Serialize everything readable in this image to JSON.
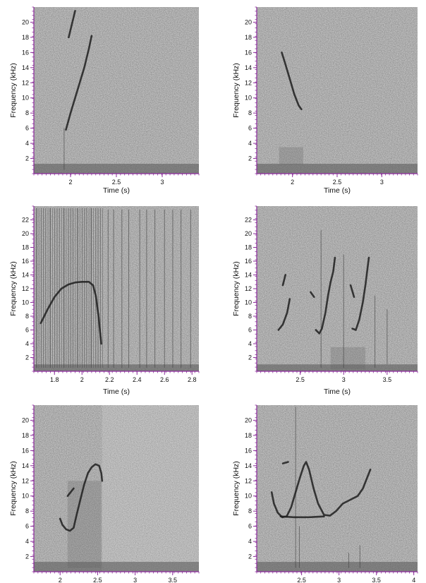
{
  "chart_data": [
    {
      "type": "spectrogram",
      "xlabel": "Time (s)",
      "ylabel": "Frequency (kHz)",
      "xlim": [
        1.6,
        3.4
      ],
      "ylim": [
        0,
        22
      ],
      "xticks": [
        2,
        2.5,
        3
      ],
      "xtick_labels": [
        "2",
        "2.5",
        "3"
      ],
      "yticks": [
        2,
        4,
        6,
        8,
        10,
        12,
        14,
        16,
        18,
        20
      ],
      "ytick_labels": [
        "2",
        "4",
        "6",
        "8",
        "10",
        "12",
        "14",
        "16",
        "18",
        "20"
      ],
      "contours": [
        {
          "points": [
            [
              1.95,
              5.8
            ],
            [
              2.0,
              8.0
            ],
            [
              2.05,
              10.0
            ],
            [
              2.1,
              12.0
            ],
            [
              2.15,
              14.0
            ],
            [
              2.2,
              16.5
            ],
            [
              2.23,
              18.2
            ]
          ]
        },
        {
          "points": [
            [
              1.98,
              18.0
            ],
            [
              2.02,
              20.0
            ],
            [
              2.05,
              21.5
            ]
          ]
        }
      ],
      "vlines": [
        {
          "x": 1.93,
          "from": 0.5,
          "to": 6.0
        }
      ],
      "base_band": [
        0,
        1.3
      ]
    },
    {
      "type": "spectrogram",
      "xlabel": "Time (s)",
      "ylabel": "Frequency (kHz)",
      "xlim": [
        1.6,
        3.4
      ],
      "ylim": [
        0,
        22
      ],
      "xticks": [
        2,
        2.5,
        3
      ],
      "xtick_labels": [
        "2",
        "2.5",
        "3"
      ],
      "yticks": [
        2,
        4,
        6,
        8,
        10,
        12,
        14,
        16,
        18,
        20
      ],
      "ytick_labels": [
        "2",
        "4",
        "6",
        "8",
        "10",
        "12",
        "14",
        "16",
        "18",
        "20"
      ],
      "contours": [
        {
          "points": [
            [
              1.88,
              16.0
            ],
            [
              1.92,
              14.5
            ],
            [
              1.97,
              12.5
            ],
            [
              2.02,
              10.5
            ],
            [
              2.07,
              9.0
            ],
            [
              2.1,
              8.5
            ]
          ]
        }
      ],
      "noise_patches": [
        {
          "x": [
            1.85,
            2.12
          ],
          "y": [
            1.2,
            3.5
          ]
        }
      ],
      "base_band": [
        0,
        1.3
      ]
    },
    {
      "type": "spectrogram",
      "xlabel": "Time (s)",
      "ylabel": "Frequency (kHz)",
      "xlim": [
        1.65,
        2.85
      ],
      "ylim": [
        0,
        24
      ],
      "xticks": [
        1.8,
        2,
        2.2,
        2.4,
        2.6,
        2.8
      ],
      "xtick_labels": [
        "1.8",
        "2",
        "2.2",
        "2.4",
        "2.6",
        "2.8"
      ],
      "yticks": [
        2,
        4,
        6,
        8,
        10,
        12,
        14,
        16,
        18,
        20,
        22
      ],
      "ytick_labels": [
        "2",
        "4",
        "6",
        "8",
        "10",
        "12",
        "14",
        "16",
        "18",
        "20",
        "22"
      ],
      "contours": [
        {
          "points": [
            [
              1.7,
              7.0
            ],
            [
              1.75,
              9.0
            ],
            [
              1.8,
              10.8
            ],
            [
              1.85,
              12.0
            ],
            [
              1.9,
              12.6
            ],
            [
              1.95,
              12.9
            ],
            [
              2.0,
              13.0
            ],
            [
              2.05,
              13.0
            ],
            [
              2.08,
              12.5
            ],
            [
              2.1,
              11.0
            ],
            [
              2.12,
              8.0
            ],
            [
              2.14,
              4.0
            ]
          ]
        }
      ],
      "vlines_dense": {
        "x_range": [
          1.67,
          2.15
        ],
        "count": 30
      },
      "vlines": [
        {
          "x": 2.19,
          "from": 0.5,
          "to": 23.5
        },
        {
          "x": 2.23,
          "from": 0.5,
          "to": 23.5
        },
        {
          "x": 2.29,
          "from": 0.5,
          "to": 23.5
        },
        {
          "x": 2.34,
          "from": 0.5,
          "to": 23.5
        },
        {
          "x": 2.42,
          "from": 0.5,
          "to": 23.5
        },
        {
          "x": 2.47,
          "from": 0.5,
          "to": 23.5
        },
        {
          "x": 2.53,
          "from": 0.5,
          "to": 23.5
        },
        {
          "x": 2.6,
          "from": 0.5,
          "to": 23.5
        },
        {
          "x": 2.66,
          "from": 0.5,
          "to": 23.5
        },
        {
          "x": 2.72,
          "from": 0.5,
          "to": 23.5
        },
        {
          "x": 2.79,
          "from": 0.5,
          "to": 23.5
        }
      ],
      "base_band": [
        0,
        1.0
      ]
    },
    {
      "type": "spectrogram",
      "xlabel": "Time (s)",
      "ylabel": "Frequency (kHz)",
      "xlim": [
        2.0,
        3.85
      ],
      "ylim": [
        0,
        24
      ],
      "xticks": [
        2.5,
        3,
        3.5
      ],
      "xtick_labels": [
        "2.5",
        "3",
        "3.5"
      ],
      "yticks": [
        2,
        4,
        6,
        8,
        10,
        12,
        14,
        16,
        18,
        20,
        22
      ],
      "ytick_labels": [
        "2",
        "4",
        "6",
        "8",
        "10",
        "12",
        "14",
        "16",
        "18",
        "20",
        "22"
      ],
      "contours": [
        {
          "points": [
            [
              2.25,
              6.0
            ],
            [
              2.3,
              6.8
            ],
            [
              2.35,
              8.5
            ],
            [
              2.38,
              10.5
            ]
          ]
        },
        {
          "points": [
            [
              2.3,
              12.5
            ],
            [
              2.33,
              14.0
            ]
          ]
        },
        {
          "points": [
            [
              2.68,
              6.0
            ],
            [
              2.72,
              5.5
            ],
            [
              2.75,
              6.2
            ],
            [
              2.79,
              8.5
            ],
            [
              2.82,
              11.0
            ],
            [
              2.85,
              13.0
            ],
            [
              2.88,
              14.5
            ],
            [
              2.9,
              16.5
            ]
          ]
        },
        {
          "points": [
            [
              2.62,
              11.5
            ],
            [
              2.66,
              10.8
            ]
          ]
        },
        {
          "points": [
            [
              3.1,
              6.2
            ],
            [
              3.14,
              6.0
            ],
            [
              3.18,
              7.5
            ],
            [
              3.22,
              10.0
            ],
            [
              3.25,
              12.5
            ],
            [
              3.27,
              14.5
            ],
            [
              3.29,
              16.5
            ]
          ]
        },
        {
          "points": [
            [
              3.08,
              12.5
            ],
            [
              3.12,
              10.8
            ]
          ]
        }
      ],
      "noise_patches": [
        {
          "x": [
            2.85,
            3.25
          ],
          "y": [
            0.3,
            3.5
          ]
        }
      ],
      "vlines": [
        {
          "x": 2.74,
          "from": 0.5,
          "to": 20.5
        },
        {
          "x": 3.0,
          "from": 0.5,
          "to": 17.0
        },
        {
          "x": 3.36,
          "from": 0.5,
          "to": 11.0
        },
        {
          "x": 3.5,
          "from": 1.0,
          "to": 9.0
        }
      ],
      "base_band": [
        0,
        1.0
      ]
    },
    {
      "type": "spectrogram",
      "xlabel": "",
      "ylabel": "Frequency (kHz)",
      "xlim": [
        1.65,
        3.85
      ],
      "ylim": [
        0,
        22
      ],
      "xticks": [
        2,
        2.5,
        3,
        3.5
      ],
      "xtick_labels": [
        "2",
        "2.5",
        "3",
        "3.5"
      ],
      "yticks": [
        2,
        4,
        6,
        8,
        10,
        12,
        14,
        16,
        18,
        20
      ],
      "ytick_labels": [
        "2",
        "4",
        "6",
        "8",
        "10",
        "12",
        "14",
        "16",
        "18",
        "20"
      ],
      "contours": [
        {
          "points": [
            [
              2.0,
              7.0
            ],
            [
              2.03,
              6.2
            ],
            [
              2.08,
              5.6
            ],
            [
              2.13,
              5.4
            ],
            [
              2.18,
              5.8
            ],
            [
              2.22,
              7.5
            ],
            [
              2.27,
              9.5
            ],
            [
              2.32,
              11.5
            ],
            [
              2.37,
              13.0
            ],
            [
              2.42,
              13.8
            ],
            [
              2.47,
              14.2
            ],
            [
              2.52,
              14.0
            ],
            [
              2.55,
              13.0
            ],
            [
              2.56,
              12.0
            ]
          ]
        },
        {
          "points": [
            [
              2.1,
              10.0
            ],
            [
              2.14,
              10.5
            ],
            [
              2.18,
              11.0
            ]
          ]
        }
      ],
      "noise_patches": [
        {
          "x": [
            2.1,
            2.55
          ],
          "y": [
            0.5,
            12.0
          ]
        }
      ],
      "base_band": [
        0,
        1.3
      ],
      "lighter_from_x": 2.56
    },
    {
      "type": "spectrogram",
      "xlabel": "",
      "ylabel": "Frequency (kHz)",
      "xlim": [
        1.9,
        4.05
      ],
      "ylim": [
        0,
        22
      ],
      "xticks": [
        2.5,
        3,
        3.5,
        4
      ],
      "xtick_labels": [
        "2.5",
        "3",
        "3.5",
        "4"
      ],
      "yticks": [
        2,
        4,
        6,
        8,
        10,
        12,
        14,
        16,
        18,
        20
      ],
      "ytick_labels": [
        "2",
        "4",
        "6",
        "8",
        "10",
        "12",
        "14",
        "16",
        "18",
        "20"
      ],
      "contours": [
        {
          "points": [
            [
              2.1,
              10.5
            ],
            [
              2.13,
              9.0
            ],
            [
              2.18,
              7.8
            ],
            [
              2.24,
              7.2
            ],
            [
              2.3,
              7.3
            ],
            [
              2.36,
              8.5
            ],
            [
              2.42,
              10.5
            ],
            [
              2.48,
              12.5
            ],
            [
              2.53,
              14.0
            ],
            [
              2.56,
              14.5
            ],
            [
              2.6,
              13.5
            ],
            [
              2.66,
              11.0
            ],
            [
              2.72,
              9.0
            ],
            [
              2.8,
              7.5
            ],
            [
              2.88,
              7.4
            ],
            [
              2.96,
              8.0
            ],
            [
              3.05,
              9.0
            ],
            [
              3.15,
              9.5
            ],
            [
              3.25,
              10.0
            ],
            [
              3.32,
              11.0
            ],
            [
              3.38,
              12.5
            ],
            [
              3.42,
              13.5
            ]
          ]
        },
        {
          "points": [
            [
              2.22,
              7.3
            ],
            [
              2.4,
              7.2
            ],
            [
              2.6,
              7.2
            ],
            [
              2.8,
              7.3
            ]
          ]
        },
        {
          "points": [
            [
              2.25,
              14.3
            ],
            [
              2.32,
              14.5
            ]
          ]
        }
      ],
      "vlines": [
        {
          "x": 2.42,
          "from": 0.5,
          "to": 21.8
        },
        {
          "x": 2.47,
          "from": 0.5,
          "to": 6.0
        },
        {
          "x": 3.28,
          "from": 0.5,
          "to": 3.5
        },
        {
          "x": 3.13,
          "from": 0.5,
          "to": 2.5
        }
      ],
      "base_band": [
        0,
        1.3
      ]
    }
  ]
}
